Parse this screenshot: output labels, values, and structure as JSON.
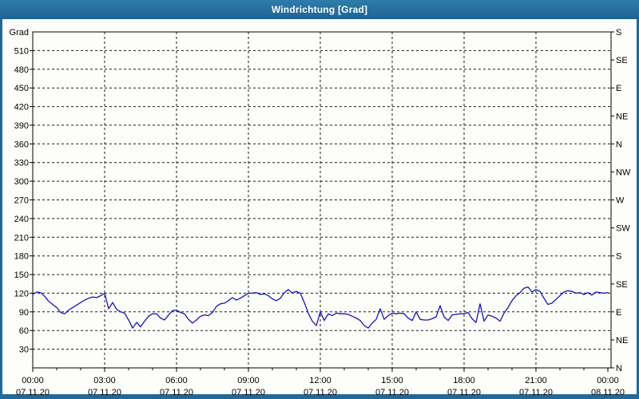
{
  "window": {
    "title": "Windrichtung [Grad]",
    "titlebar_color": "#26719f",
    "border_color": "#20699b",
    "background_color": "#fdfdfa"
  },
  "chart_data": {
    "type": "line",
    "title": "Windrichtung [Grad]",
    "grid": "on",
    "legend": "none",
    "frame_color": "#000000",
    "grid_color": "#1a1a1a",
    "y_axis": {
      "label": "Grad",
      "min": 0,
      "max": 540,
      "tick_step": 30,
      "tick_values": [
        30,
        60,
        90,
        120,
        150,
        180,
        210,
        240,
        270,
        300,
        330,
        360,
        390,
        420,
        450,
        480,
        510
      ]
    },
    "y2_axis": {
      "tick_step_degrees": 45,
      "labels_top_to_bottom": [
        "S",
        "SE",
        "E",
        "NE",
        "N",
        "NW",
        "W",
        "SW",
        "S",
        "SE",
        "E",
        "NE",
        "N"
      ]
    },
    "x_axis": {
      "range_minutes": [
        0,
        1440
      ],
      "major_tick_minutes": 180,
      "minor_tick_minutes": 60,
      "tick_times": [
        "00:00",
        "03:00",
        "06:00",
        "09:00",
        "12:00",
        "15:00",
        "18:00",
        "21:00",
        "00:00"
      ],
      "tick_dates": [
        "07.11.20",
        "07.11.20",
        "07.11.20",
        "07.11.20",
        "07.11.20",
        "07.11.20",
        "07.11.20",
        "07.11.20",
        "08.11.20"
      ]
    },
    "series": [
      {
        "name": "Windrichtung",
        "color": "#1616b8",
        "start_time": "07.11.20 00:00",
        "interval_minutes": 10,
        "values": [
          118,
          122,
          121,
          115,
          107,
          102,
          97,
          89,
          87,
          93,
          97,
          101,
          105,
          109,
          112,
          114,
          113,
          116,
          120,
          95,
          105,
          94,
          90,
          88,
          77,
          64,
          73,
          66,
          75,
          83,
          87,
          87,
          80,
          77,
          85,
          92,
          93,
          89,
          87,
          78,
          72,
          77,
          83,
          85,
          84,
          89,
          99,
          103,
          104,
          108,
          113,
          109,
          112,
          116,
          120,
          120,
          121,
          118,
          119,
          116,
          111,
          108,
          112,
          121,
          126,
          120,
          123,
          120,
          105,
          88,
          75,
          68,
          90,
          76,
          87,
          84,
          88,
          87,
          87,
          86,
          83,
          80,
          76,
          68,
          64,
          72,
          78,
          95,
          78,
          84,
          88,
          87,
          88,
          87,
          80,
          76,
          90,
          78,
          77,
          77,
          79,
          82,
          100,
          82,
          76,
          85,
          86,
          87,
          87,
          89,
          79,
          73,
          103,
          75,
          85,
          83,
          80,
          75,
          88,
          97,
          108,
          116,
          121,
          128,
          130,
          122,
          126,
          123,
          112,
          102,
          104,
          110,
          116,
          122,
          124,
          123,
          120,
          121,
          118,
          121,
          117,
          122,
          121,
          120,
          121
        ]
      }
    ]
  }
}
